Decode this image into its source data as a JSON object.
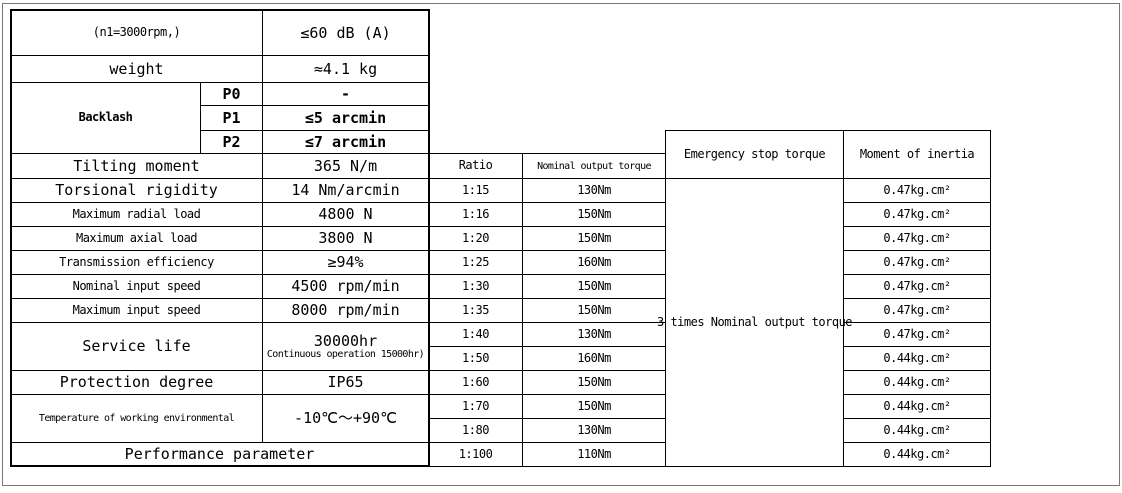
{
  "spec_table": {
    "rows": [
      {
        "label": "(n1=3000rpm,)",
        "value": "≤60 dB (A)"
      },
      {
        "label": "weight",
        "value": "≈4.1 kg"
      },
      {
        "label": "Tilting moment",
        "value": "365 N/m"
      },
      {
        "label": "Torsional rigidity",
        "value": "14 Nm/arcmin"
      },
      {
        "label": "Maximum radial load",
        "value": "4800 N"
      },
      {
        "label": "Maximum axial load",
        "value": "3800 N"
      },
      {
        "label": "Transmission efficiency",
        "value": "≥94%"
      },
      {
        "label": "Nominal input speed",
        "value": "4500 rpm/min"
      },
      {
        "label": "Maximum input speed",
        "value": "8000 rpm/min"
      },
      {
        "label": "Service life",
        "value": "30000hr",
        "note": "Continuous operation 15000hr)"
      },
      {
        "label": "Protection degree",
        "value": "IP65"
      },
      {
        "label": "Temperature of working environmental",
        "value": "-10℃～+90℃"
      }
    ],
    "backlash": {
      "label": "Backlash",
      "rows": [
        {
          "position": "P0",
          "value": "-"
        },
        {
          "position": "P1",
          "value": "≤5 arcmin"
        },
        {
          "position": "P2",
          "value": "≤7 arcmin"
        }
      ]
    },
    "footer": "Performance parameter"
  },
  "ratio_table": {
    "headers": [
      "Ratio",
      "Nominal output torque",
      "Emergency stop torque",
      "Moment of inertia"
    ],
    "emergency_stop_torque": "3 times Nominal output torque",
    "rows": [
      {
        "ratio": "1:15",
        "torque": "130Nm",
        "inertia": "0.47kg.cm²"
      },
      {
        "ratio": "1:16",
        "torque": "150Nm",
        "inertia": "0.47kg.cm²"
      },
      {
        "ratio": "1:20",
        "torque": "150Nm",
        "inertia": "0.47kg.cm²"
      },
      {
        "ratio": "1:25",
        "torque": "160Nm",
        "inertia": "0.47kg.cm²"
      },
      {
        "ratio": "1:30",
        "torque": "150Nm",
        "inertia": "0.47kg.cm²"
      },
      {
        "ratio": "1:35",
        "torque": "150Nm",
        "inertia": "0.47kg.cm²"
      },
      {
        "ratio": "1:40",
        "torque": "130Nm",
        "inertia": "0.47kg.cm²"
      },
      {
        "ratio": "1:50",
        "torque": "160Nm",
        "inertia": "0.44kg.cm²"
      },
      {
        "ratio": "1:60",
        "torque": "150Nm",
        "inertia": "0.44kg.cm²"
      },
      {
        "ratio": "1:70",
        "torque": "150Nm",
        "inertia": "0.44kg.cm²"
      },
      {
        "ratio": "1:80",
        "torque": "130Nm",
        "inertia": "0.44kg.cm²"
      },
      {
        "ratio": "1:100",
        "torque": "110Nm",
        "inertia": "0.44kg.cm²"
      }
    ]
  }
}
